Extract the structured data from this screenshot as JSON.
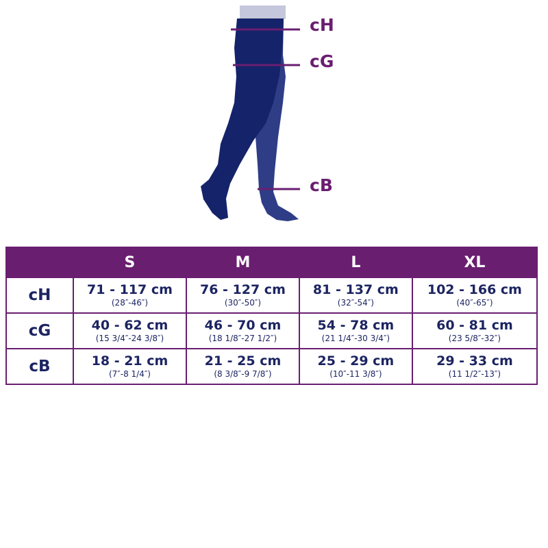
{
  "colors": {
    "accent": "#6a1e70",
    "text": "#1c2461",
    "stocking_front": "#15236a",
    "stocking_back": "#2e3d86",
    "waistband": "#c5c8dc"
  },
  "measurements": [
    {
      "label": "cH"
    },
    {
      "label": "cG"
    },
    {
      "label": "cB"
    }
  ],
  "table": {
    "columns": [
      "",
      "S",
      "M",
      "L",
      "XL"
    ],
    "rows": [
      {
        "label": "cH",
        "cells": [
          {
            "cm": "71 - 117 cm",
            "inch": "(28″-46″)"
          },
          {
            "cm": "76 - 127 cm",
            "inch": "(30″-50″)"
          },
          {
            "cm": "81 - 137 cm",
            "inch": "(32″-54″)"
          },
          {
            "cm": "102 - 166 cm",
            "inch": "(40″-65″)"
          }
        ]
      },
      {
        "label": "cG",
        "cells": [
          {
            "cm": "40 - 62 cm",
            "inch": "(15 3/4″-24 3/8″)"
          },
          {
            "cm": "46 - 70 cm",
            "inch": "(18 1/8″-27 1/2″)"
          },
          {
            "cm": "54 - 78 cm",
            "inch": "(21 1/4″-30 3/4″)"
          },
          {
            "cm": "60 - 81 cm",
            "inch": "(23 5/8″-32″)"
          }
        ]
      },
      {
        "label": "cB",
        "cells": [
          {
            "cm": "18 - 21 cm",
            "inch": "(7″-8 1/4″)"
          },
          {
            "cm": "21 - 25 cm",
            "inch": "(8 3/8″-9 7/8″)"
          },
          {
            "cm": "25 - 29 cm",
            "inch": "(10″-11 3/8″)"
          },
          {
            "cm": "29 - 33 cm",
            "inch": "(11 1/2″-13″)"
          }
        ]
      }
    ]
  }
}
